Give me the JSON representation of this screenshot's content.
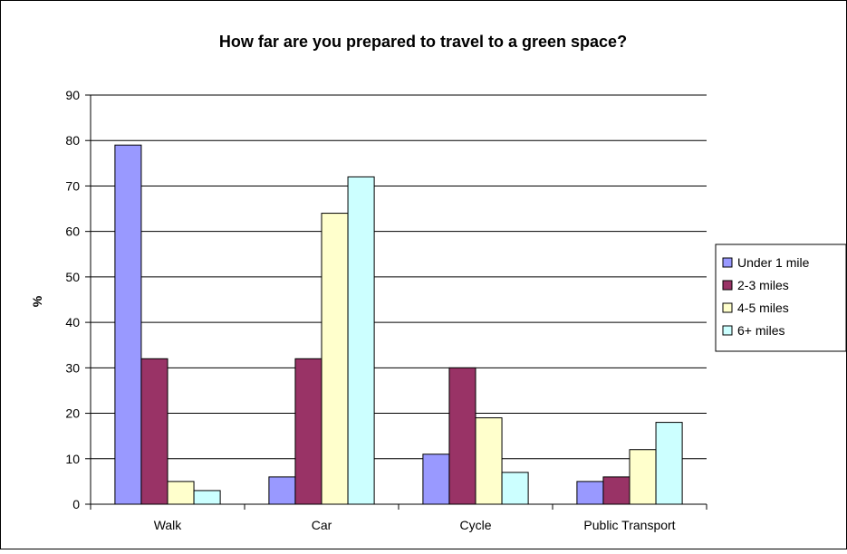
{
  "chart_data": {
    "type": "bar",
    "title": "How far are you prepared to travel to a green space?",
    "xlabel": "",
    "ylabel": "%",
    "ylim": [
      0,
      90
    ],
    "yticks": [
      0,
      10,
      20,
      30,
      40,
      50,
      60,
      70,
      80,
      90
    ],
    "grid": true,
    "legend_position": "right",
    "categories": [
      "Walk",
      "Car",
      "Cycle",
      "Public Transport"
    ],
    "series": [
      {
        "name": "Under 1 mile",
        "color": "#9999FF",
        "values": [
          79,
          6,
          11,
          5
        ]
      },
      {
        "name": "2-3 miles",
        "color": "#993366",
        "values": [
          32,
          32,
          30,
          6
        ]
      },
      {
        "name": "4-5 miles",
        "color": "#FFFFCC",
        "values": [
          5,
          64,
          19,
          12
        ]
      },
      {
        "name": "6+ miles",
        "color": "#CCFFFF",
        "values": [
          3,
          72,
          7,
          18
        ]
      }
    ]
  }
}
